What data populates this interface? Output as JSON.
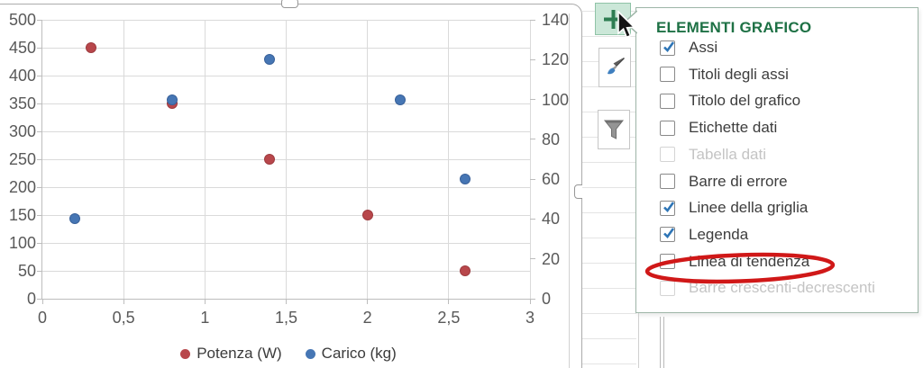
{
  "window": {
    "app": "Excel chart with Chart Elements fly-out"
  },
  "chart_data": {
    "type": "scatter",
    "title": "",
    "xlabel": "",
    "ylabel": "",
    "grid": true,
    "legend_position": "bottom",
    "x_axis": {
      "min": 0,
      "max": 3,
      "labels": [
        "0",
        "0,5",
        "1",
        "1,5",
        "2",
        "2,5",
        "3"
      ]
    },
    "y_axis_left": {
      "min": 0,
      "max": 500,
      "labels": [
        "0",
        "50",
        "100",
        "150",
        "200",
        "250",
        "300",
        "350",
        "400",
        "450",
        "500"
      ]
    },
    "y_axis_right": {
      "min": 0,
      "max": 140,
      "labels": [
        "0",
        "20",
        "40",
        "60",
        "80",
        "100",
        "120",
        "140"
      ]
    },
    "series": [
      {
        "name": "Potenza (W)",
        "axis": "left",
        "color": "#b8474b",
        "edge": "#9e3b3f",
        "points": [
          [
            0.3,
            450
          ],
          [
            0.8,
            350
          ],
          [
            1.4,
            250
          ],
          [
            2.0,
            150
          ],
          [
            2.6,
            50
          ]
        ]
      },
      {
        "name": "Carico (kg)",
        "axis": "right",
        "color": "#4676b4",
        "edge": "#39619a",
        "points": [
          [
            0.2,
            40
          ],
          [
            0.8,
            100
          ],
          [
            1.4,
            120
          ],
          [
            2.2,
            100
          ],
          [
            2.6,
            60
          ]
        ]
      }
    ]
  },
  "legend": {
    "items": [
      {
        "label": "Potenza (W)",
        "color": "#b8474b"
      },
      {
        "label": "Carico (kg)",
        "color": "#4676b4"
      }
    ]
  },
  "toolbar": {
    "buttons": [
      {
        "id": "chart-elements",
        "icon": "plus-icon",
        "selected": true
      },
      {
        "id": "chart-styles",
        "icon": "paintbrush-icon",
        "selected": false
      },
      {
        "id": "chart-filters",
        "icon": "funnel-icon",
        "selected": false
      }
    ]
  },
  "popup": {
    "title": "ELEMENTI GRAFICO",
    "accent_color": "#1e7145",
    "check_color": "#2e75b6",
    "items": [
      {
        "label": "Assi",
        "checked": true,
        "disabled": false,
        "circled": false
      },
      {
        "label": "Titoli degli assi",
        "checked": false,
        "disabled": false,
        "circled": false
      },
      {
        "label": "Titolo del grafico",
        "checked": false,
        "disabled": false,
        "circled": false
      },
      {
        "label": "Etichette dati",
        "checked": false,
        "disabled": false,
        "circled": false
      },
      {
        "label": "Tabella dati",
        "checked": false,
        "disabled": true,
        "circled": false
      },
      {
        "label": "Barre di errore",
        "checked": false,
        "disabled": false,
        "circled": false
      },
      {
        "label": "Linee della griglia",
        "checked": true,
        "disabled": false,
        "circled": false
      },
      {
        "label": "Legenda",
        "checked": true,
        "disabled": false,
        "circled": false
      },
      {
        "label": "Linea di tendenza",
        "checked": false,
        "disabled": false,
        "circled": true
      },
      {
        "label": "Barre crescenti-decrescenti",
        "checked": false,
        "disabled": true,
        "circled": false
      }
    ],
    "annotation_color": "#d01818"
  }
}
